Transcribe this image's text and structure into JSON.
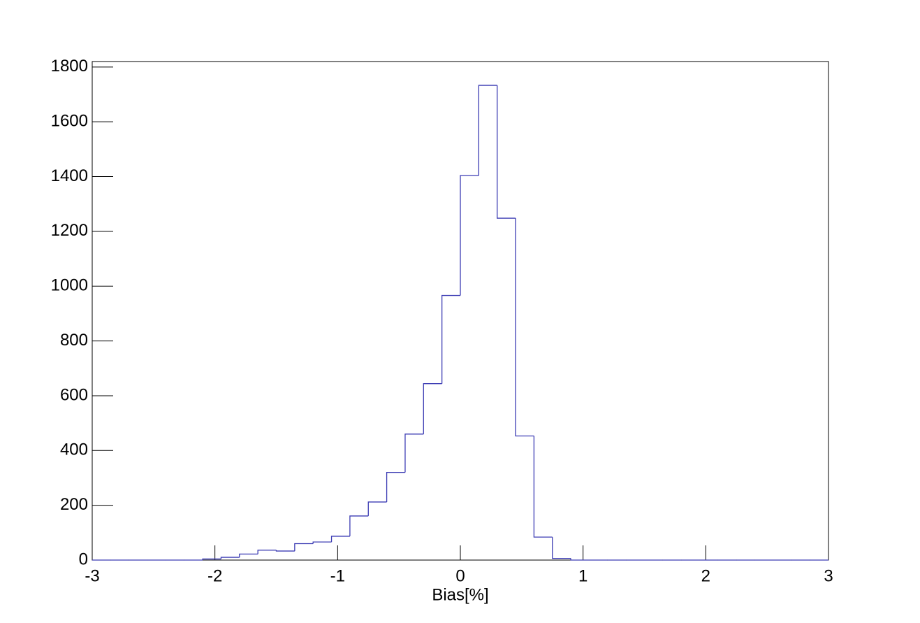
{
  "chart_data": {
    "type": "histogram",
    "x_label": "Bias[%]",
    "bins": [
      -3,
      -2.85,
      -2.7,
      -2.55,
      -2.4,
      -2.25,
      -2.1,
      -1.95,
      -1.8,
      -1.65,
      -1.5,
      -1.35,
      -1.2,
      -1.05,
      -0.9,
      -0.75,
      -0.6,
      -0.45,
      -0.3,
      -0.15,
      0,
      0.15,
      0.3,
      0.45,
      0.6,
      0.75,
      0.9,
      1.05,
      1.2,
      1.35,
      1.5,
      1.65,
      1.8,
      1.95,
      2.1,
      2.25,
      2.4,
      2.55,
      2.7,
      2.85,
      3
    ],
    "values": [
      0,
      0,
      0,
      0,
      0,
      0,
      4,
      10,
      22,
      36,
      33,
      60,
      66,
      87,
      161,
      212,
      320,
      460,
      644,
      966,
      1404,
      1733,
      1248,
      453,
      84,
      6,
      0,
      0,
      0,
      0,
      0,
      0,
      0,
      0,
      0,
      0,
      0,
      0,
      0,
      0
    ],
    "color": "#3b3bb3",
    "xlim": [
      -3,
      3
    ],
    "ylim": [
      0,
      1820
    ],
    "xticks": [
      -3,
      -2,
      -1,
      0,
      1,
      2,
      3
    ],
    "yticks": [
      0,
      200,
      400,
      600,
      800,
      1000,
      1200,
      1400,
      1600,
      1800
    ]
  }
}
